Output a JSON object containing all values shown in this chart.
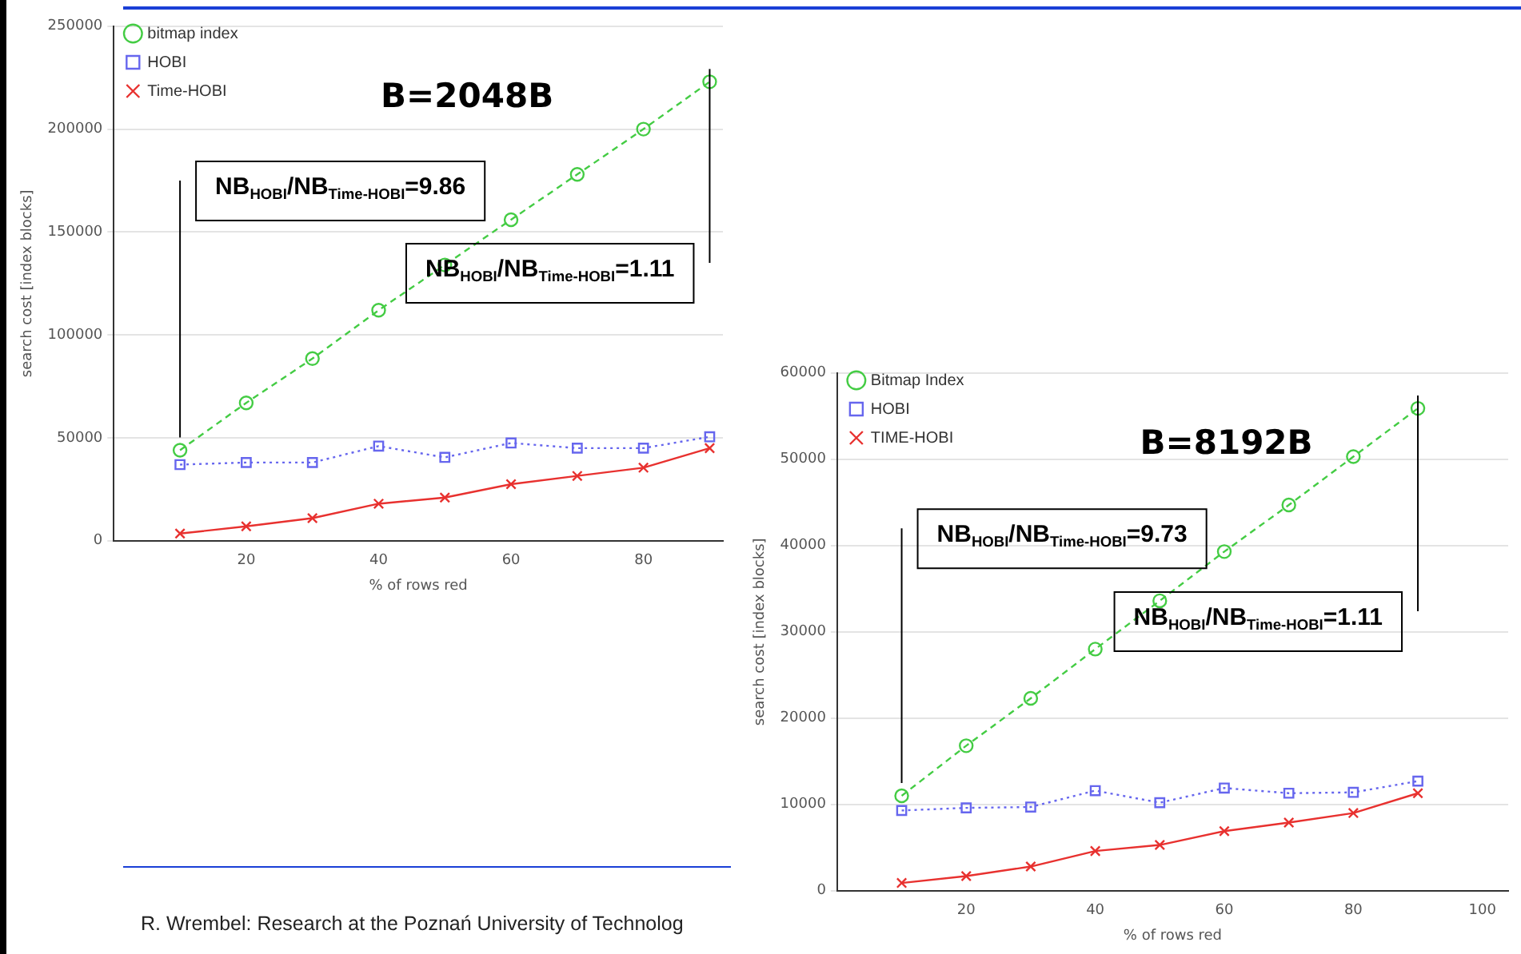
{
  "chart_data": [
    {
      "type": "line",
      "title": "B=2048B",
      "xlabel": "% of rows red",
      "ylabel": "search cost [index blocks]",
      "x": [
        10,
        20,
        30,
        40,
        50,
        60,
        70,
        80,
        90
      ],
      "series": [
        {
          "name": "bitmap index",
          "color": "#44cc44",
          "marker": "circle",
          "line_style": "dashed",
          "values": [
            44000,
            67000,
            88500,
            112000,
            134000,
            156000,
            178000,
            200000,
            223000
          ]
        },
        {
          "name": "HOBI",
          "color": "#6666ee",
          "marker": "square",
          "line_style": "dotted",
          "values": [
            37000,
            38000,
            38000,
            46000,
            40500,
            47500,
            45000,
            45000,
            50500
          ]
        },
        {
          "name": "Time-HOBI",
          "color": "#e8312f",
          "marker": "cross",
          "line_style": "solid",
          "values": [
            3500,
            7000,
            11000,
            18000,
            21000,
            27500,
            31500,
            35500,
            45000
          ]
        }
      ],
      "xlim": [
        0,
        92
      ],
      "xticks": [
        20,
        40,
        60,
        80
      ],
      "ylim": [
        0,
        250000
      ],
      "yticks": [
        0,
        50000,
        100000,
        150000,
        200000,
        250000
      ],
      "grid": "y",
      "legend": "top left",
      "ref_lines": [
        {
          "axis": "x",
          "value": 10,
          "color": "#000000"
        },
        {
          "axis": "x",
          "value": 90,
          "color": "#000000"
        }
      ],
      "annotations": [
        "NB$_{HOBI}$/NB$_{Time-HOBI}$=9.86",
        "NB$_{HOBI}$/NB$_{Time-HOBI}$=1.11",
        "R. Wrembel: Research at the Poznań University of Technolog"
      ]
    },
    {
      "type": "line",
      "title": "B=8192B",
      "xlabel": "% of rows red",
      "ylabel": "search cost [index blocks]",
      "x": [
        10,
        20,
        30,
        40,
        50,
        60,
        70,
        80,
        90
      ],
      "series": [
        {
          "name": "Bitmap Index",
          "color": "#44cc44",
          "marker": "circle",
          "line_style": "dashed",
          "values": [
            11000,
            16800,
            22300,
            28000,
            33600,
            39300,
            44700,
            50300,
            55900
          ]
        },
        {
          "name": "HOBI",
          "color": "#6666ee",
          "marker": "square",
          "line_style": "dotted",
          "values": [
            9300,
            9600,
            9700,
            11600,
            10200,
            11900,
            11300,
            11400,
            12700
          ]
        },
        {
          "name": "TIME-HOBI",
          "color": "#e8312f",
          "marker": "cross",
          "line_style": "solid",
          "values": [
            900,
            1700,
            2800,
            4600,
            5300,
            6900,
            7900,
            9000,
            11300
          ]
        }
      ],
      "xlim": [
        0,
        104
      ],
      "xticks": [
        20,
        40,
        60,
        80,
        100
      ],
      "ylim": [
        0,
        60000
      ],
      "yticks": [
        0,
        10000,
        20000,
        30000,
        40000,
        50000,
        60000
      ],
      "grid": "y",
      "legend": "top left",
      "ref_lines": [
        {
          "axis": "x",
          "value": 10,
          "color": "#000000"
        },
        {
          "axis": "x",
          "value": 90,
          "color": "#000000"
        }
      ],
      "annotations": [
        "NB$_{HOBI}$/NB$_{Time-HOBI}$=9.73",
        "NB$_{HOBI}$/NB$_{Time-HOBI}$=1.11"
      ]
    }
  ]
}
